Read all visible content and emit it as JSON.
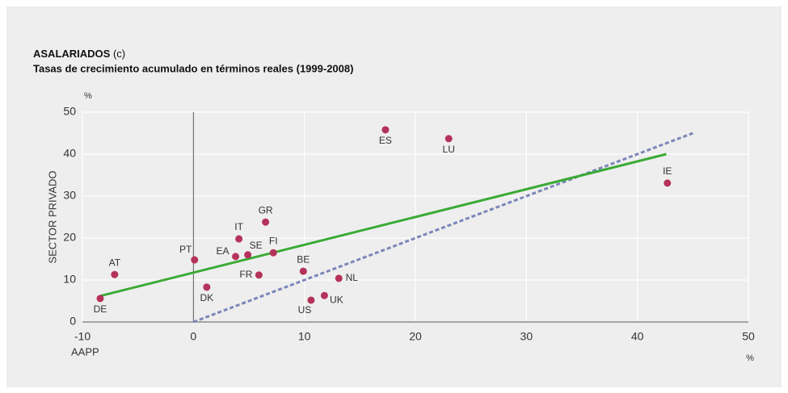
{
  "chart_data": {
    "type": "scatter",
    "title": "ASALARIADOS",
    "title_note": "(c)",
    "subtitle": "Tasas de crecimiento acumulado en términos reales (1999-2008)",
    "y_unit": "%",
    "y_label": "SECTOR PRIVADO",
    "x_label": "AAPP",
    "x_unit": "%",
    "points": {
      "color": "#b5325a",
      "labels": [
        "DE",
        "AT",
        "PT",
        "DK",
        "EA",
        "IT",
        "SE",
        "GR",
        "FR",
        "FI",
        "BE",
        "US",
        "UK",
        "NL",
        "ES",
        "LU",
        "IE"
      ],
      "x": [
        -8.4,
        -7.1,
        0.1,
        1.2,
        3.8,
        4.1,
        4.9,
        6.5,
        5.9,
        7.2,
        9.9,
        10.6,
        11.8,
        13.1,
        17.3,
        23.0,
        42.7
      ],
      "y": [
        5.6,
        11.3,
        14.8,
        8.3,
        15.6,
        19.8,
        16.0,
        23.8,
        11.2,
        16.5,
        12.1,
        5.2,
        6.3,
        10.4,
        45.8,
        43.7,
        33.1
      ]
    },
    "fit_line": {
      "color": "#3aaa35",
      "x": [
        -8.4,
        42.6
      ],
      "y": [
        6.2,
        40
      ]
    },
    "reference_line": {
      "color": "#7b86b8",
      "x": [
        0,
        45
      ],
      "y": [
        0,
        45
      ]
    },
    "xlim": [
      -10,
      50
    ],
    "xticks": [
      -10,
      0,
      10,
      20,
      30,
      40,
      50
    ],
    "ylim": [
      0,
      50
    ],
    "yticks": [
      0,
      10,
      20,
      30,
      40,
      50
    ],
    "grid": true
  }
}
